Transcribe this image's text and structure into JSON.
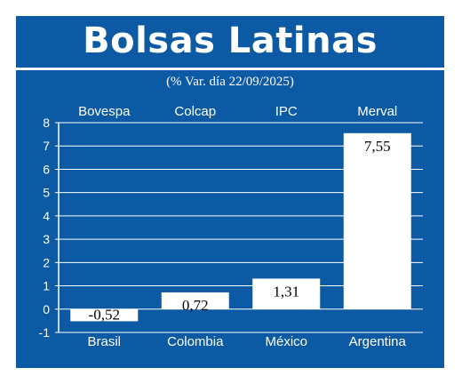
{
  "title": "Bolsas Latinas",
  "subtitle": "(% Var. día 22/09/2025)",
  "colors": {
    "background": "#0b5aa3",
    "bar": "#ffffff",
    "text": "#ffffff",
    "value_text": "#000000"
  },
  "chart_data": {
    "type": "bar",
    "title": "Bolsas Latinas",
    "subtitle": "(% Var. día 22/09/2025)",
    "categories": [
      "Brasil",
      "Colombia",
      "México",
      "Argentina"
    ],
    "index_names": [
      "Bovespa",
      "Colcap",
      "IPC",
      "Merval"
    ],
    "values": [
      -0.52,
      0.72,
      1.31,
      7.55
    ],
    "value_labels": [
      "-0,52",
      "0,72",
      "1,31",
      "7,55"
    ],
    "y_ticks": [
      "8",
      "7",
      "6",
      "5",
      "4",
      "3",
      "2",
      "1",
      "0",
      "-1"
    ],
    "ylim": [
      -1,
      8
    ],
    "grid": true,
    "xlabel": "",
    "ylabel": ""
  }
}
